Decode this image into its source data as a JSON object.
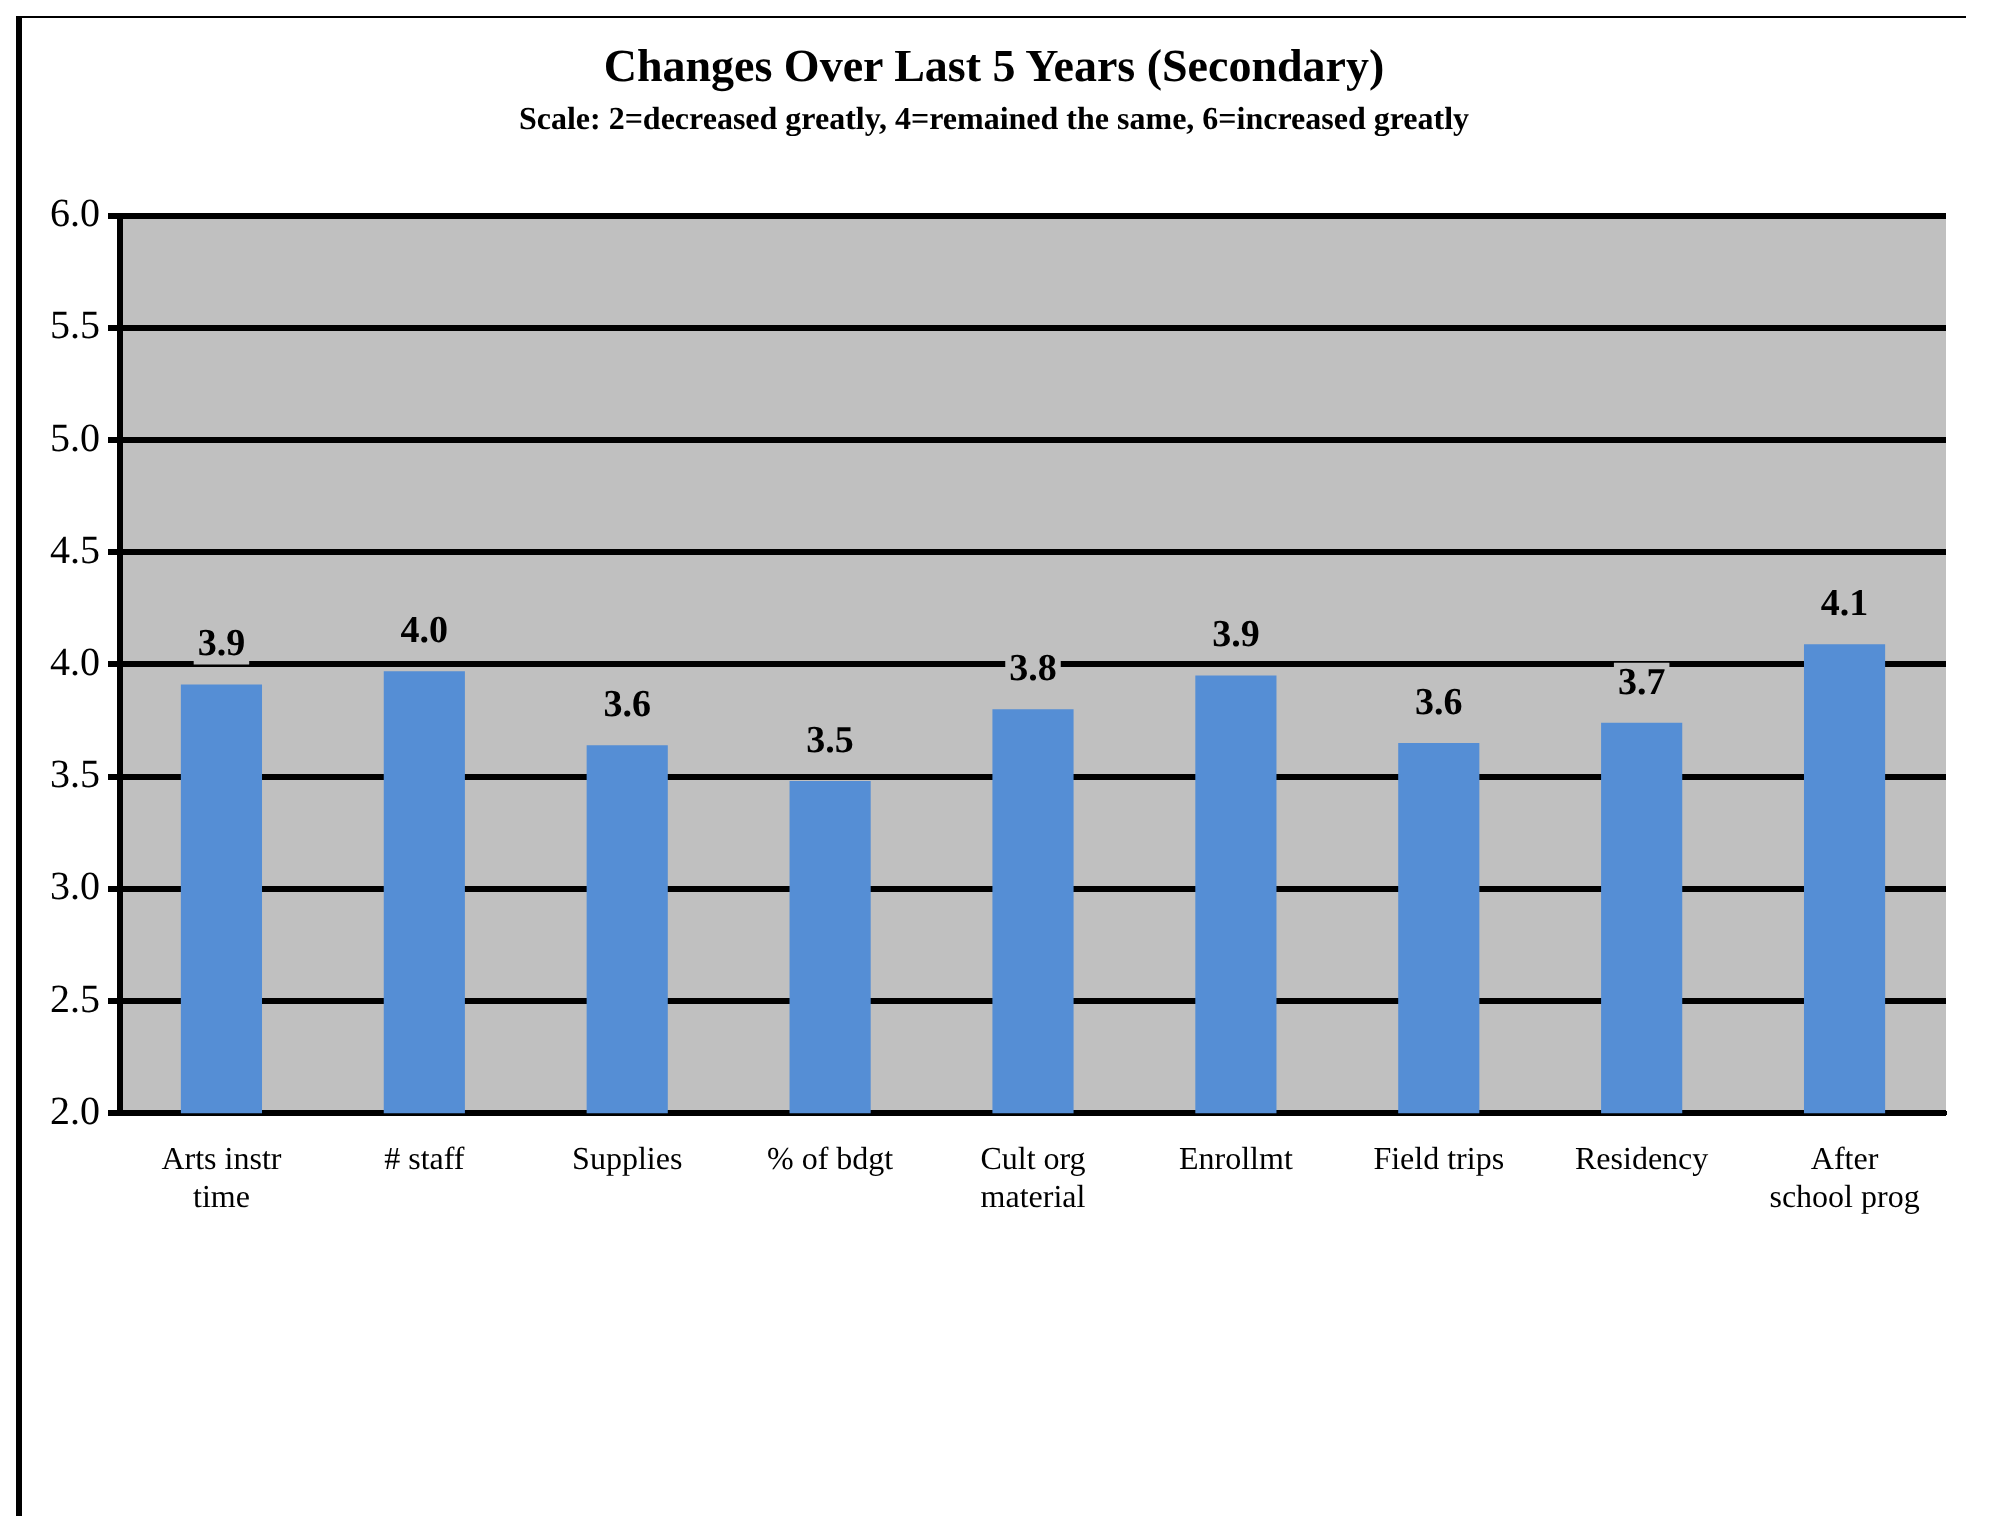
{
  "chart_data": {
    "type": "bar",
    "title": "Changes Over Last 5 Years (Secondary)",
    "subtitle": "Scale: 2=decreased greatly, 4=remained the same, 6=increased greatly",
    "categories": [
      "Arts instr time",
      "# staff",
      "Supplies",
      "% of bdgt",
      "Cult org material",
      "Enrollmt",
      "Field trips",
      "Residency",
      "After school prog"
    ],
    "values": [
      3.91,
      3.97,
      3.64,
      3.48,
      3.8,
      3.95,
      3.65,
      3.74,
      4.09
    ],
    "value_labels": [
      "3.9",
      "4.0",
      "3.6",
      "3.5",
      "3.8",
      "3.9",
      "3.6",
      "3.7",
      "4.1"
    ],
    "color": "#558ed5",
    "ylim": [
      2,
      6
    ],
    "yticks": [
      {
        "value": 2,
        "label": "2.0"
      },
      {
        "value": 2.5,
        "label": "2.5"
      },
      {
        "value": 3,
        "label": "3.0"
      },
      {
        "value": 3.5,
        "label": "3.5"
      },
      {
        "value": 4,
        "label": "4.0"
      },
      {
        "value": 4.5,
        "label": "4.5"
      },
      {
        "value": 5,
        "label": "5.0"
      },
      {
        "value": 5.5,
        "label": "5.5"
      },
      {
        "value": 6,
        "label": "6.0"
      }
    ],
    "grid": "y",
    "legend": false
  }
}
